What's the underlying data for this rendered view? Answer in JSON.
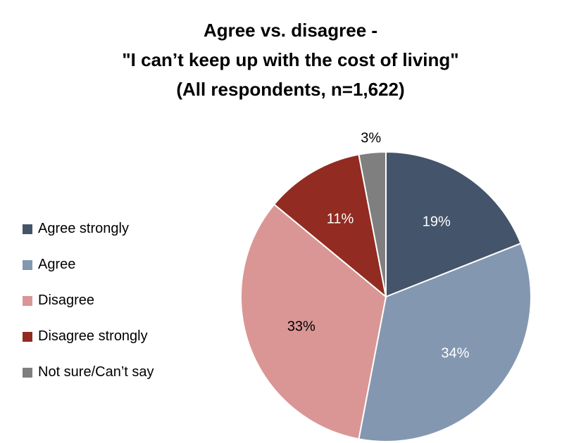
{
  "chart_data": {
    "type": "pie",
    "title": [
      "Agree vs. disagree -",
      "\"I can’t keep up with the cost of living\"",
      "(All respondents, n=1,622)"
    ],
    "slices": [
      {
        "name": "Agree strongly",
        "value": 19,
        "label": "19%",
        "color": "#44546a",
        "label_color": "#ffffff"
      },
      {
        "name": "Agree",
        "value": 34,
        "label": "34%",
        "color": "#8497b0",
        "label_color": "#ffffff"
      },
      {
        "name": "Disagree",
        "value": 33,
        "label": "33%",
        "color": "#da9694",
        "label_color": "#000000"
      },
      {
        "name": "Disagree strongly",
        "value": 11,
        "label": "11%",
        "color": "#922b21",
        "label_color": "#ffffff"
      },
      {
        "name": "Not sure/Can’t say",
        "value": 3,
        "label": "3%",
        "color": "#7f7f7f",
        "label_color": "#000000"
      }
    ],
    "legend_position": "left"
  }
}
